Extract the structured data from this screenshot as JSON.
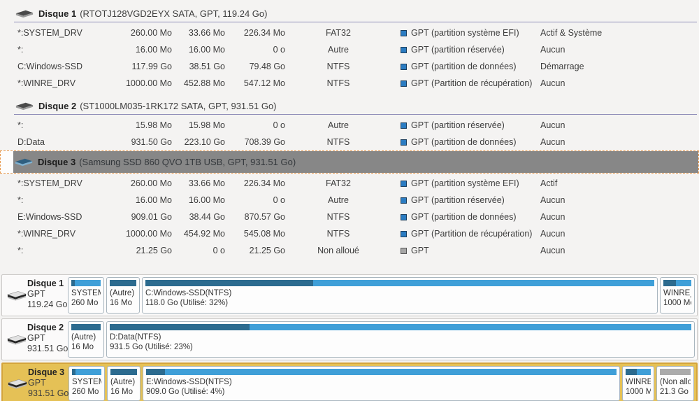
{
  "colors": {
    "accent_blue": "#2b7cc2",
    "bar_used": "#2c6b8f",
    "bar_free": "#3f9fd8",
    "bar_unallocated": "#ababab",
    "selected_header_gray": "#878787",
    "selected_map_yellow": "#e5c156",
    "selected_map_border": "#d4a43c",
    "selection_dashed_border": "#e89a50"
  },
  "table": {
    "disks": [
      {
        "name": "Disque 1",
        "desc": "(RTOTJ128VGD2EYX SATA, GPT, 119.24 Go)",
        "rows": [
          {
            "name": "*:SYSTEM_DRV",
            "capacity": "260.00 Mo",
            "used": "33.66 Mo",
            "unused": "226.34 Mo",
            "fs": "FAT32",
            "legend": "blue",
            "type": "GPT (partition système EFI)",
            "status": "Actif & Système"
          },
          {
            "name": "*:",
            "capacity": "16.00 Mo",
            "used": "16.00 Mo",
            "unused": "0 o",
            "fs": "Autre",
            "legend": "blue",
            "type": "GPT (partition réservée)",
            "status": "Aucun"
          },
          {
            "name": "C:Windows-SSD",
            "capacity": "117.99 Go",
            "used": "38.51 Go",
            "unused": "79.48 Go",
            "fs": "NTFS",
            "legend": "blue",
            "type": "GPT (partition de données)",
            "status": "Démarrage"
          },
          {
            "name": "*:WINRE_DRV",
            "capacity": "1000.00 Mo",
            "used": "452.88 Mo",
            "unused": "547.12 Mo",
            "fs": "NTFS",
            "legend": "blue",
            "type": "GPT (Partition de récupération)",
            "status": "Aucun"
          }
        ]
      },
      {
        "name": "Disque 2",
        "desc": "(ST1000LM035-1RK172 SATA, GPT, 931.51 Go)",
        "rows": [
          {
            "name": "*:",
            "capacity": "15.98 Mo",
            "used": "15.98 Mo",
            "unused": "0 o",
            "fs": "Autre",
            "legend": "blue",
            "type": "GPT (partition réservée)",
            "status": "Aucun"
          },
          {
            "name": "D:Data",
            "capacity": "931.50 Go",
            "used": "223.10 Go",
            "unused": "708.39 Go",
            "fs": "NTFS",
            "legend": "blue",
            "type": "GPT (partition de données)",
            "status": "Aucun"
          }
        ]
      },
      {
        "name": "Disque 3",
        "desc": "(Samsung SSD 860 QVO 1TB USB, GPT, 931.51 Go)",
        "rows": [
          {
            "name": "*:SYSTEM_DRV",
            "capacity": "260.00 Mo",
            "used": "33.66 Mo",
            "unused": "226.34 Mo",
            "fs": "FAT32",
            "legend": "blue",
            "type": "GPT (partition système EFI)",
            "status": "Actif"
          },
          {
            "name": "*:",
            "capacity": "16.00 Mo",
            "used": "16.00 Mo",
            "unused": "0 o",
            "fs": "Autre",
            "legend": "blue",
            "type": "GPT (partition réservée)",
            "status": "Aucun"
          },
          {
            "name": "E:Windows-SSD",
            "capacity": "909.01 Go",
            "used": "38.44 Go",
            "unused": "870.57 Go",
            "fs": "NTFS",
            "legend": "blue",
            "type": "GPT (partition de données)",
            "status": "Aucun"
          },
          {
            "name": "*:WINRE_DRV",
            "capacity": "1000.00 Mo",
            "used": "454.92 Mo",
            "unused": "545.08 Mo",
            "fs": "NTFS",
            "legend": "blue",
            "type": "GPT (Partition de récupération)",
            "status": "Aucun"
          },
          {
            "name": "*:",
            "capacity": "21.25 Go",
            "used": "0 o",
            "unused": "21.25 Go",
            "fs": "Non alloué",
            "legend": "gray",
            "type": "GPT",
            "status": "Aucun"
          }
        ]
      }
    ]
  },
  "maps": [
    {
      "name": "Disque 1",
      "scheme": "GPT",
      "size": "119.24 Go",
      "partitions": [
        {
          "line1": "SYSTEM_",
          "line2": "260 Mo (",
          "used_pct": 13
        },
        {
          "line1": "(Autre)",
          "line2": "16 Mo",
          "used_pct": 100
        },
        {
          "line1": "C:Windows-SSD(NTFS)",
          "line2": "118.0 Go (Utilisé: 32%)",
          "used_pct": 33
        },
        {
          "line1": "WINRE_[",
          "line2": "1000 Mo",
          "used_pct": 45
        }
      ]
    },
    {
      "name": "Disque 2",
      "scheme": "GPT",
      "size": "931.51 Go",
      "partitions": [
        {
          "line1": "(Autre)",
          "line2": "16 Mo",
          "used_pct": 100
        },
        {
          "line1": "D:Data(NTFS)",
          "line2": "931.5 Go (Utilisé: 23%)",
          "used_pct": 24
        }
      ]
    },
    {
      "name": "Disque 3",
      "scheme": "GPT",
      "size": "931.51 Go",
      "partitions": [
        {
          "line1": "SYSTEM_",
          "line2": "260 Mo (",
          "used_pct": 13
        },
        {
          "line1": "(Autre)",
          "line2": "16 Mo",
          "used_pct": 100
        },
        {
          "line1": "E:Windows-SSD(NTFS)",
          "line2": "909.0 Go (Utilisé: 4%)",
          "used_pct": 4
        },
        {
          "line1": "WINRE_[",
          "line2": "1000 Mo",
          "used_pct": 45
        },
        {
          "line1": "(Non allo",
          "line2": "21.3 Go",
          "used_pct": 0
        }
      ]
    }
  ]
}
